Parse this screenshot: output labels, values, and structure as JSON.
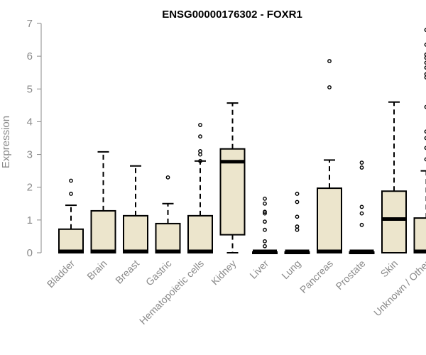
{
  "chart_data": {
    "type": "box",
    "title": "ENSG00000176302 - FOXR1",
    "ylabel": "Expression",
    "xlabel": "",
    "ylim": [
      0,
      7
    ],
    "yticks": [
      0,
      1,
      2,
      3,
      4,
      5,
      6,
      7
    ],
    "categories": [
      "Bladder",
      "Brain",
      "Breast",
      "Gastric",
      "Hematopoietic cells",
      "Kidney",
      "Liver",
      "Lung",
      "Pancreas",
      "Prostate",
      "Skin",
      "Unknown / Other"
    ],
    "series": [
      {
        "name": "Bladder",
        "min": 0,
        "q1": 0,
        "median": 0,
        "q3": 0.72,
        "max": 1.45,
        "outliers": [
          1.8,
          2.2
        ]
      },
      {
        "name": "Brain",
        "min": 0,
        "q1": 0,
        "median": 0,
        "q3": 1.28,
        "max": 3.08,
        "outliers": []
      },
      {
        "name": "Breast",
        "min": 0,
        "q1": 0,
        "median": 0,
        "q3": 1.13,
        "max": 2.65,
        "outliers": []
      },
      {
        "name": "Gastric",
        "min": 0,
        "q1": 0,
        "median": 0,
        "q3": 0.89,
        "max": 1.5,
        "outliers": [
          2.3
        ]
      },
      {
        "name": "Hematopoietic cells",
        "min": 0,
        "q1": 0,
        "median": 0,
        "q3": 1.13,
        "max": 2.8,
        "outliers": [
          2.8,
          3.0,
          3.1,
          3.55,
          3.9
        ]
      },
      {
        "name": "Kidney",
        "min": 0,
        "q1": 0.55,
        "median": 2.78,
        "q3": 3.17,
        "max": 4.57,
        "outliers": []
      },
      {
        "name": "Liver",
        "min": 0,
        "q1": 0,
        "median": 0,
        "q3": 0,
        "max": 0,
        "outliers": [
          0.2,
          0.35,
          0.7,
          0.95,
          1.2,
          1.25,
          1.5,
          1.65
        ]
      },
      {
        "name": "Lung",
        "min": 0,
        "q1": 0,
        "median": 0,
        "q3": 0,
        "max": 0,
        "outliers": [
          0.7,
          0.8,
          1.1,
          1.55,
          1.8
        ]
      },
      {
        "name": "Pancreas",
        "min": 0,
        "q1": 0,
        "median": 0,
        "q3": 1.97,
        "max": 2.83,
        "outliers": [
          5.05,
          5.85
        ]
      },
      {
        "name": "Prostate",
        "min": 0,
        "q1": 0,
        "median": 0,
        "q3": 0,
        "max": 0,
        "outliers": [
          0.85,
          1.2,
          1.4,
          2.6,
          2.75
        ]
      },
      {
        "name": "Skin",
        "min": 0,
        "q1": 0,
        "median": 1.03,
        "q3": 1.88,
        "max": 4.6,
        "outliers": []
      },
      {
        "name": "Unknown / Other",
        "min": 0,
        "q1": 0,
        "median": 0,
        "q3": 1.06,
        "max": 2.5,
        "outliers": [
          2.85,
          3.2,
          3.5,
          3.7,
          4.45,
          5.35,
          5.45,
          5.65,
          5.8,
          5.95,
          6.05,
          6.35,
          6.8
        ]
      }
    ],
    "box_color": "#ece5cc",
    "grid": false,
    "legend": "none"
  }
}
